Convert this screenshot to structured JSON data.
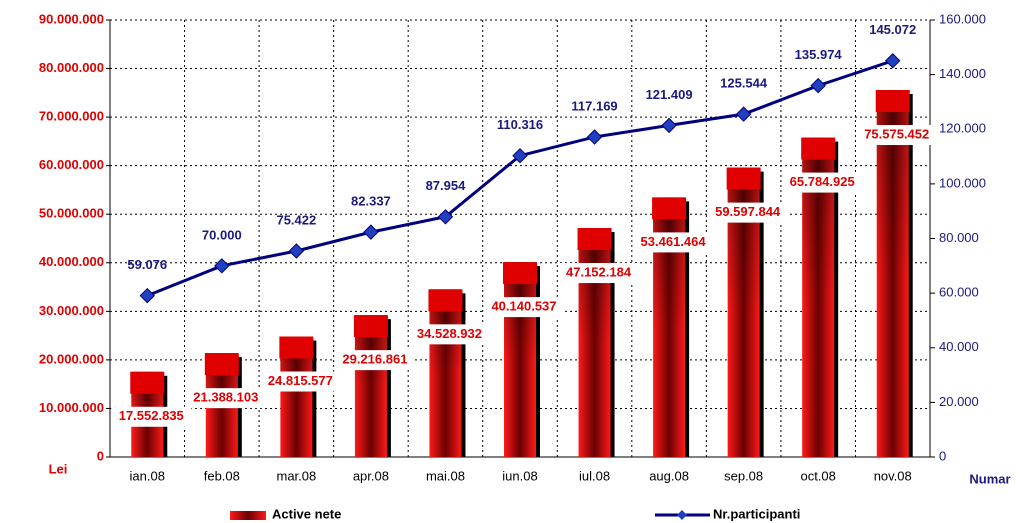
{
  "chart_data": {
    "type": "bar",
    "y_label": "Lei",
    "y2_label": "Numar",
    "categories": [
      "ian.08",
      "feb.08",
      "mar.08",
      "apr.08",
      "mai.08",
      "iun.08",
      "iul.08",
      "aug.08",
      "sep.08",
      "oct.08",
      "nov.08"
    ],
    "series": [
      {
        "name": "Active nete",
        "type": "bar",
        "color": "#e00000",
        "values": [
          17552835,
          21388103,
          24815577,
          29216861,
          34528932,
          40140537,
          47152184,
          53461464,
          59597844,
          65784925,
          75575452
        ],
        "value_labels": [
          "17.552.835",
          "21.388.103",
          "24.815.577",
          "29.216.861",
          "34.528.932",
          "40.140.537",
          "47.152.184",
          "53.461.464",
          "59.597.844",
          "65.784.925",
          "75.575.452"
        ]
      },
      {
        "name": "Nr.participanti",
        "type": "line",
        "axis": "y2",
        "color": "#000080",
        "values": [
          59076,
          70000,
          75422,
          82337,
          87954,
          110316,
          117169,
          121409,
          125544,
          135974,
          145072
        ],
        "value_labels": [
          "59.076",
          "70.000",
          "75.422",
          "82.337",
          "87.954",
          "110.316",
          "117.169",
          "121.409",
          "125.544",
          "135.974",
          "145.072"
        ]
      }
    ],
    "ylim": [
      0,
      90000000
    ],
    "yticks": [
      0,
      {
        "value": 10000000,
        "label": "10.000.000"
      },
      {
        "value": 20000000,
        "label": "20.000.000"
      },
      {
        "value": 30000000,
        "label": "30.000.000"
      },
      {
        "value": 40000000,
        "label": "40.000.000"
      },
      {
        "value": 50000000,
        "label": "50.000.000"
      },
      {
        "value": 60000000,
        "label": "60.000.000"
      },
      {
        "value": 70000000,
        "label": "70.000.000"
      },
      {
        "value": 80000000,
        "label": "80.000.000"
      },
      {
        "value": 90000000,
        "label": "90.000.000"
      }
    ],
    "y2lim": [
      0,
      160000
    ],
    "y2ticks": [
      0,
      {
        "value": 20000,
        "label": "20.000"
      },
      {
        "value": 40000,
        "label": "40.000"
      },
      {
        "value": 60000,
        "label": "60.000"
      },
      {
        "value": 80000,
        "label": "80.000"
      },
      {
        "value": 100000,
        "label": "100.000"
      },
      {
        "value": 120000,
        "label": "120.000"
      },
      {
        "value": 140000,
        "label": "140.000"
      },
      {
        "value": 160000,
        "label": "160.000"
      }
    ],
    "grid": true,
    "legend": "bottom"
  }
}
